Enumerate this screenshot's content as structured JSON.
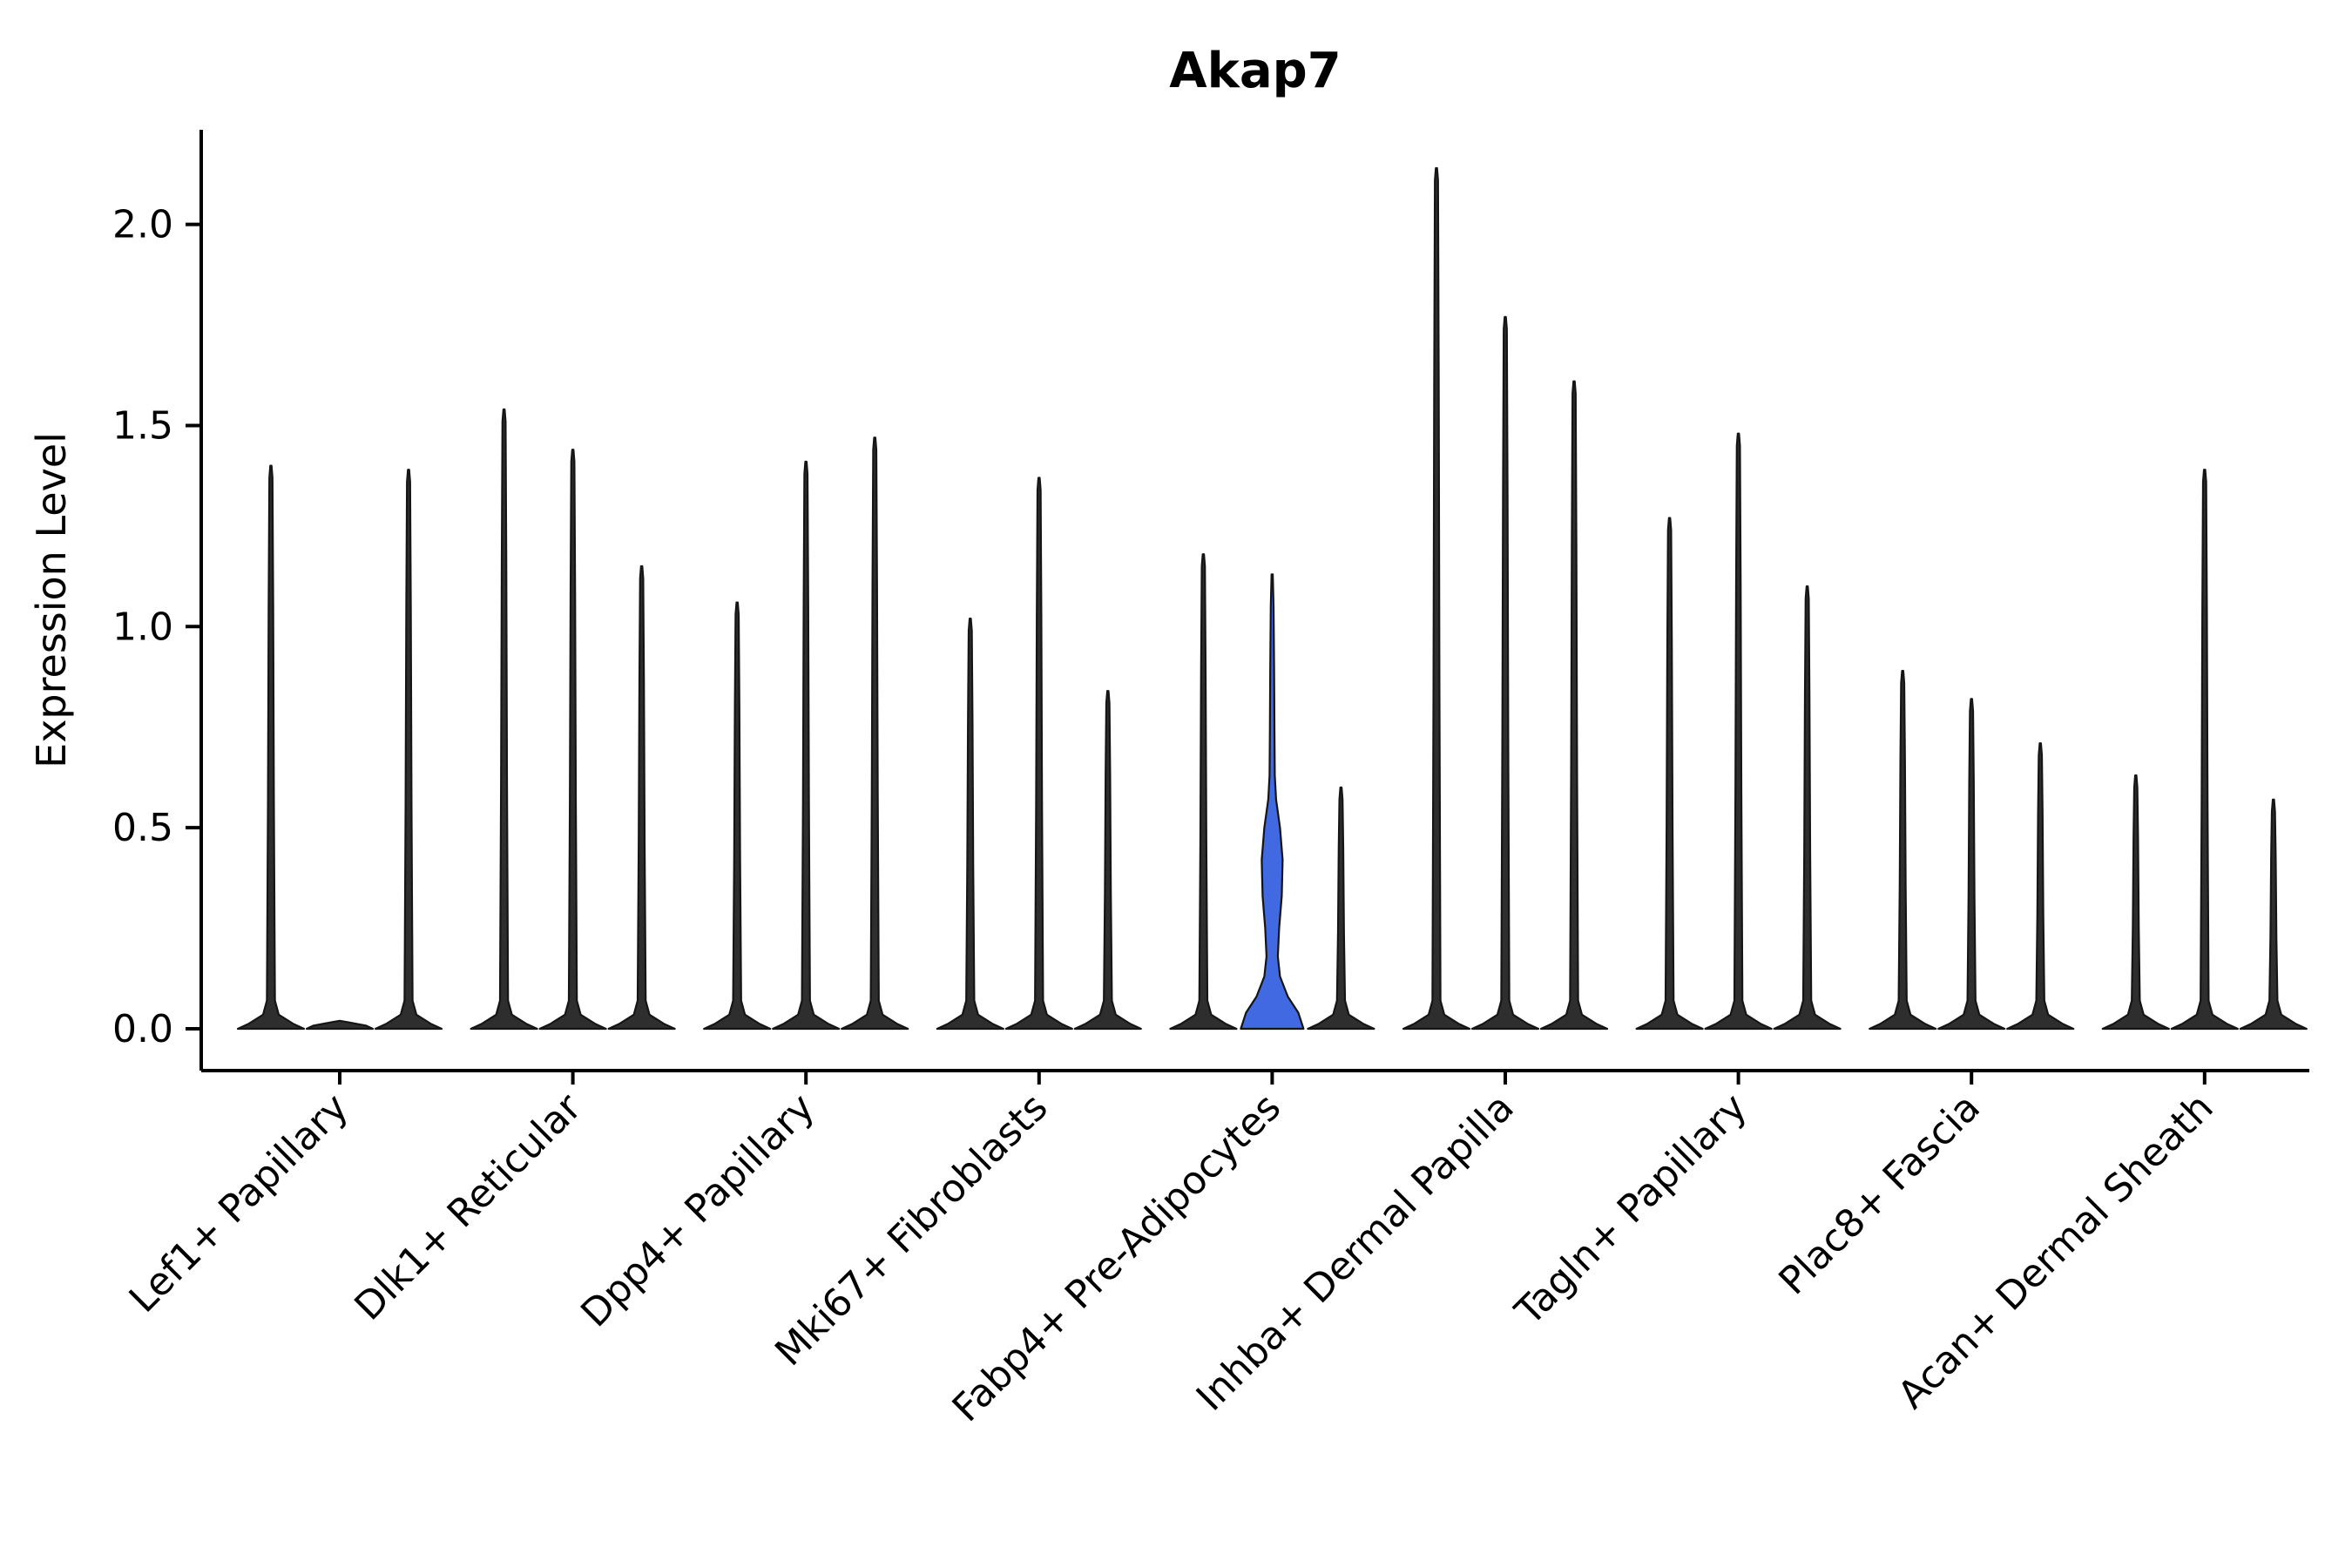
{
  "chart_data": {
    "type": "violin",
    "title": "Akap7",
    "ylabel": "Expression Level",
    "xlabel": "",
    "legend": "none",
    "grid": false,
    "ylim": [
      -0.1,
      2.23
    ],
    "yticks": [
      {
        "v": 0.0,
        "label": "0.0"
      },
      {
        "v": 0.5,
        "label": "0.5"
      },
      {
        "v": 1.0,
        "label": "1.0"
      },
      {
        "v": 1.5,
        "label": "1.5"
      },
      {
        "v": 2.0,
        "label": "2.0"
      }
    ],
    "categories": [
      "Lef1+ Papillary",
      "Dlk1+ Reticular",
      "Dpp4+ Papillary",
      "Mki67+ Fibroblasts",
      "Fabp4+ Pre-Adipocytes",
      "Inhba+ Dermal Papilla",
      "Tagln+ Papillary",
      "Plac8+ Fascia",
      "Acan+ Dermal Sheath"
    ],
    "violins_per_category": 3,
    "violin_max_values": [
      [
        1.4,
        0.0,
        1.39
      ],
      [
        1.54,
        1.44,
        1.15
      ],
      [
        1.06,
        1.41,
        1.47
      ],
      [
        1.02,
        1.37,
        0.84
      ],
      [
        1.18,
        1.13,
        0.6
      ],
      [
        2.14,
        1.77,
        1.61
      ],
      [
        1.27,
        1.48,
        1.1
      ],
      [
        0.89,
        0.82,
        0.71
      ],
      [
        0.63,
        1.39,
        0.57
      ]
    ],
    "highlight": {
      "category_index": 4,
      "violin_index": 1,
      "fill": "#4169E1",
      "max_value": 1.13,
      "profile": [
        [
          0.0,
          36.0
        ],
        [
          0.04,
          30.0
        ],
        [
          0.08,
          18.0
        ],
        [
          0.13,
          9.0
        ],
        [
          0.18,
          6.5
        ],
        [
          0.25,
          8.0
        ],
        [
          0.33,
          11.0
        ],
        [
          0.42,
          12.0
        ],
        [
          0.5,
          9.0
        ],
        [
          0.57,
          4.5
        ],
        [
          0.63,
          3.0
        ],
        [
          0.75,
          2.6
        ],
        [
          0.9,
          2.2
        ],
        [
          1.05,
          1.6
        ],
        [
          1.13,
          0.7
        ]
      ]
    },
    "colors": {
      "violin_fill": "#2e2e2e",
      "violin_stroke": "#151515",
      "highlight_fill": "#4169E1",
      "axis": "#000000",
      "text": "#000000",
      "background": "#ffffff"
    }
  }
}
